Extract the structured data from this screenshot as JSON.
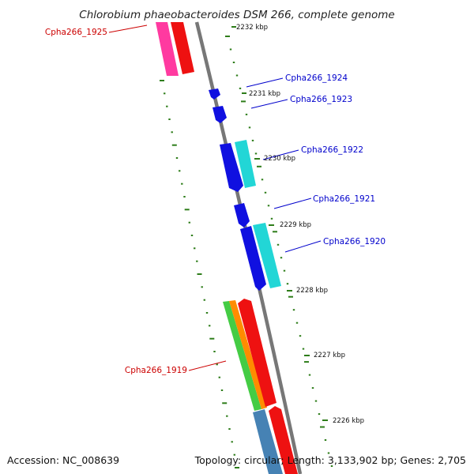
{
  "title": "Chlorobium phaeobacteroides DSM 266, complete genome",
  "footer": {
    "accession": "Accession: NC_008639",
    "topology": "Topology: circular; Length: 3,133,902 bp; Genes: 2,705"
  },
  "scale_labels": [
    "2232 kbp",
    "2231 kbp",
    "2230 kbp",
    "2229 kbp",
    "2228 kbp",
    "2227 kbp",
    "2226 kbp"
  ],
  "genes": [
    {
      "id": "Cpha266_1925",
      "label": "Cpha266_1925",
      "strand": "minus",
      "color": "#dd0000"
    },
    {
      "id": "Cpha266_1924",
      "label": "Cpha266_1924",
      "strand": "plus",
      "color": "#0000cc"
    },
    {
      "id": "Cpha266_1923",
      "label": "Cpha266_1923",
      "strand": "plus",
      "color": "#0000cc"
    },
    {
      "id": "Cpha266_1922",
      "label": "Cpha266_1922",
      "strand": "plus",
      "color": "#0000cc"
    },
    {
      "id": "Cpha266_1921",
      "label": "Cpha266_1921",
      "strand": "plus",
      "color": "#0000cc"
    },
    {
      "id": "Cpha266_1920",
      "label": "Cpha266_1920",
      "strand": "plus",
      "color": "#0000cc"
    },
    {
      "id": "Cpha266_1919",
      "label": "Cpha266_1919",
      "strand": "minus",
      "color": "#dd0000"
    }
  ],
  "colors": {
    "backbone": "#7a7a7a",
    "ticks": "#2e7d1a",
    "forward_cds": "#1010e0",
    "cog_cyan": "#22d6d6",
    "reverse_cds": "#ee1111",
    "cog_pink": "#ff3aa0",
    "cog_green": "#44cc44",
    "cog_orange": "#ff8c00",
    "cog_steelblue": "#4682b4"
  }
}
